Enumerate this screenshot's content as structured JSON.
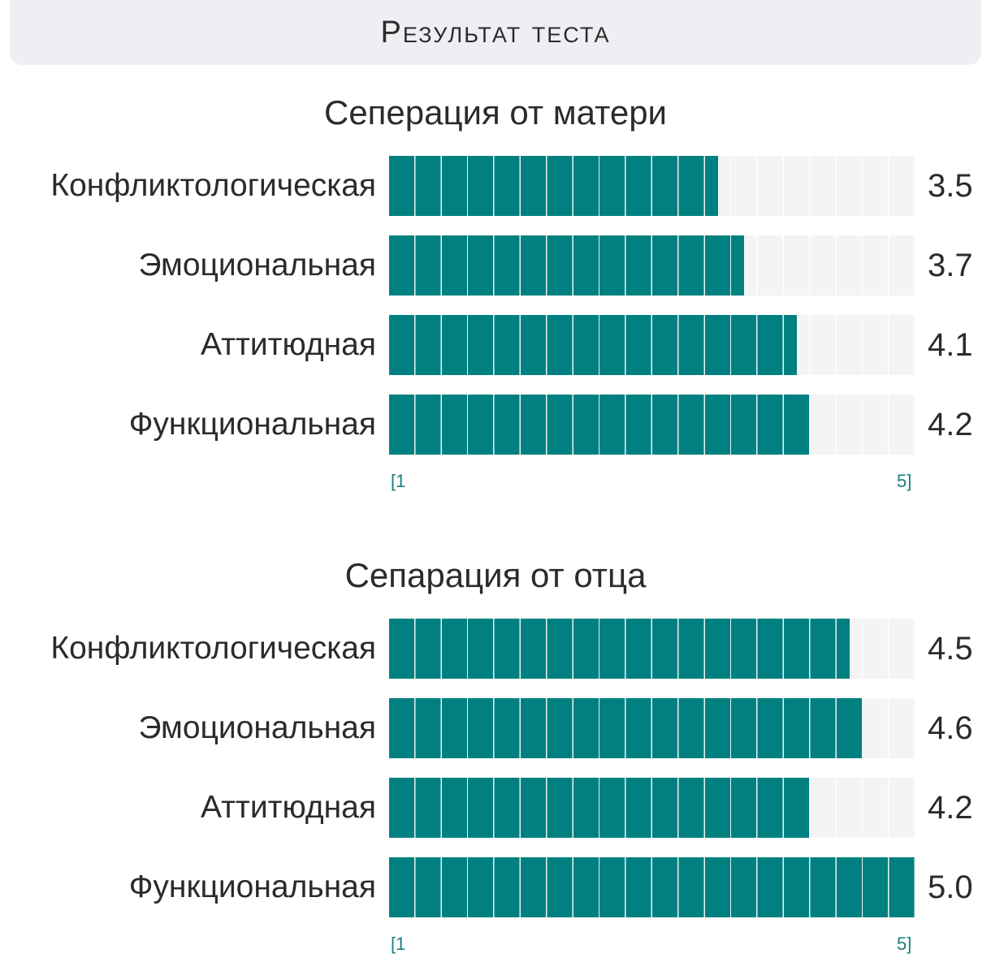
{
  "header": {
    "title": "Результат теста"
  },
  "chart_data": [
    {
      "type": "bar",
      "orientation": "horizontal",
      "title": "Сеперация от матери",
      "categories": [
        "Конфликтологическая",
        "Эмоциональная",
        "Аттитюдная",
        "Функциональная"
      ],
      "values": [
        3.5,
        3.7,
        4.1,
        4.2
      ],
      "value_labels": [
        "3.5",
        "3.7",
        "4.1",
        "4.2"
      ],
      "xlim": [
        1,
        5
      ],
      "scale_min_label": "[1",
      "scale_max_label": "5]",
      "bar_color": "#008080"
    },
    {
      "type": "bar",
      "orientation": "horizontal",
      "title": "Сепарация от отца",
      "categories": [
        "Конфликтологическая",
        "Эмоциональная",
        "Аттитюдная",
        "Функциональная"
      ],
      "values": [
        4.5,
        4.6,
        4.2,
        5.0
      ],
      "value_labels": [
        "4.5",
        "4.6",
        "4.2",
        "5.0"
      ],
      "xlim": [
        1,
        5
      ],
      "scale_min_label": "[1",
      "scale_max_label": "5]",
      "bar_color": "#008080"
    }
  ]
}
